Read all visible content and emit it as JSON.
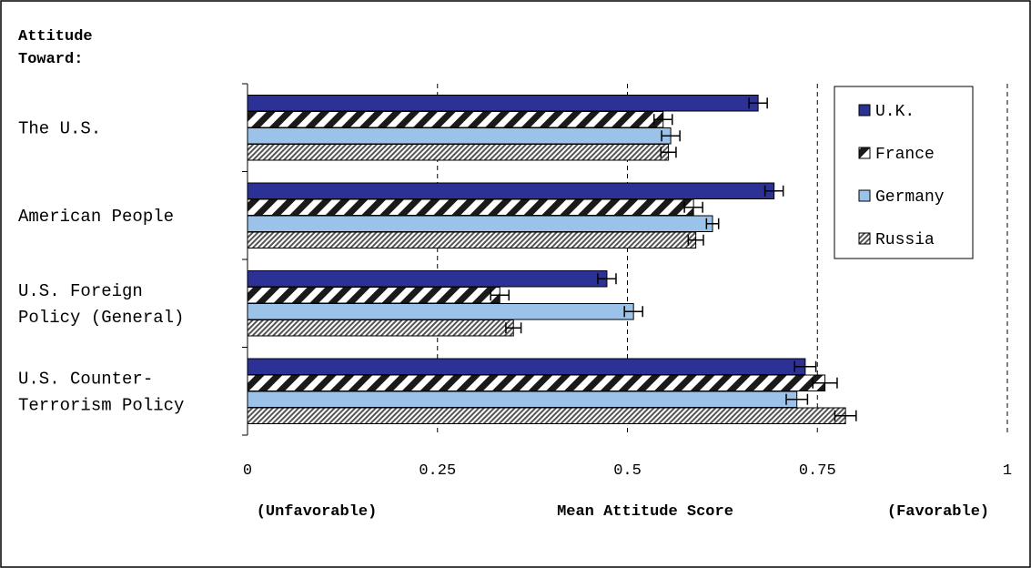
{
  "chart_data": {
    "type": "bar",
    "orientation": "horizontal",
    "title": "",
    "ylabel": "Attitude Toward:",
    "xlabel": "Mean Attitude Score",
    "x_left_note": "(Unfavorable)",
    "x_right_note": "(Favorable)",
    "xlim": [
      0,
      1
    ],
    "xticks": [
      {
        "value": 0,
        "label": "0"
      },
      {
        "value": 0.25,
        "label": "0.25"
      },
      {
        "value": 0.5,
        "label": "0.5"
      },
      {
        "value": 0.75,
        "label": "0.75"
      },
      {
        "value": 1,
        "label": "1"
      }
    ],
    "grid": "vertical dashed",
    "legend_position": "top-right",
    "categories": [
      [
        "The U.S."
      ],
      [
        "American People"
      ],
      [
        "U.S. Foreign",
        "Policy (General)"
      ],
      [
        "U.S. Counter-",
        "Terrorism Policy"
      ]
    ],
    "series": [
      {
        "name": "U.K.",
        "color": "#2b3195",
        "pattern": "solid",
        "values": [
          0.672,
          0.693,
          0.473,
          0.734
        ],
        "errors": [
          0.012,
          0.012,
          0.012,
          0.014
        ]
      },
      {
        "name": "France",
        "color": "#1a1a1a",
        "pattern": "wide-diagonal",
        "values": [
          0.547,
          0.587,
          0.332,
          0.76
        ],
        "errors": [
          0.012,
          0.012,
          0.012,
          0.016
        ]
      },
      {
        "name": "Germany",
        "color": "#9bc3ea",
        "pattern": "solid",
        "values": [
          0.557,
          0.612,
          0.508,
          0.723
        ],
        "errors": [
          0.012,
          0.008,
          0.012,
          0.014
        ]
      },
      {
        "name": "Russia",
        "color": "#555555",
        "pattern": "fine-diagonal",
        "values": [
          0.554,
          0.59,
          0.35,
          0.787
        ],
        "errors": [
          0.01,
          0.01,
          0.01,
          0.014
        ]
      }
    ]
  }
}
